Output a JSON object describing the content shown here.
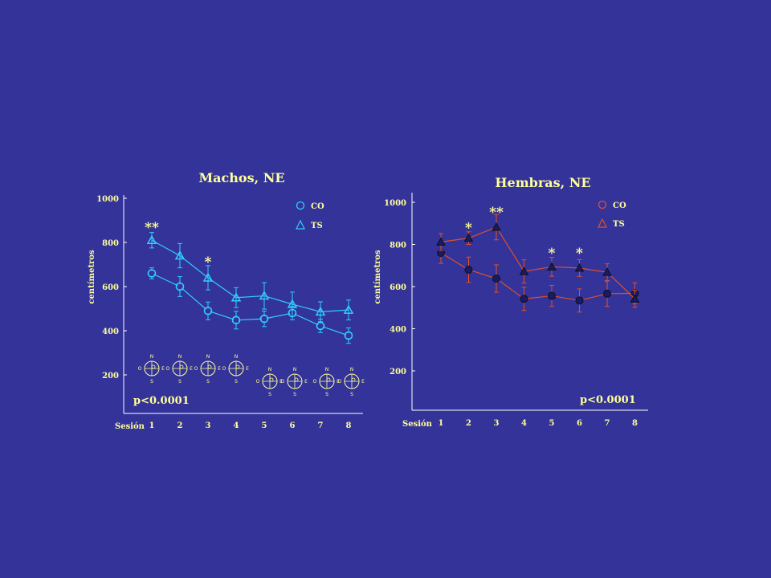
{
  "colors": {
    "background": "#333399",
    "text": "#ffff99",
    "axis": "#ffffff",
    "machos_series": "#33ccff",
    "hembras_series": "#e0502a",
    "hembras_marker_fill": "#1a1a66"
  },
  "x_axis_label": "Sesión",
  "y_axis_label": "centímetros",
  "compass": {
    "north": "N",
    "south": "S",
    "east": "E",
    "west": "O"
  },
  "chart_data": [
    {
      "type": "line",
      "title": "Machos, NE",
      "xlabel": "Sesión",
      "ylabel": "centímetros",
      "x": [
        1,
        2,
        3,
        4,
        5,
        6,
        7,
        8
      ],
      "ylim": [
        100,
        1000
      ],
      "yticks": [
        200,
        400,
        600,
        800,
        1000
      ],
      "series": [
        {
          "name": "CO",
          "marker": "circle",
          "values": [
            660,
            600,
            490,
            448,
            454,
            480,
            422,
            378
          ],
          "errors": [
            25,
            45,
            40,
            40,
            35,
            30,
            30,
            35
          ]
        },
        {
          "name": "TS",
          "marker": "triangle",
          "values": [
            810,
            740,
            640,
            550,
            558,
            520,
            486,
            494
          ],
          "errors": [
            35,
            55,
            55,
            45,
            60,
            55,
            45,
            45
          ]
        }
      ],
      "annotations": [
        {
          "text": "**",
          "x": 1,
          "y": 870
        },
        {
          "text": "*",
          "x": 3,
          "y": 712
        }
      ],
      "p_value": "p<0.0001",
      "legend_position": "top-right"
    },
    {
      "type": "line",
      "title": "Hembras, NE",
      "xlabel": "Sesión",
      "ylabel": "centímetros",
      "x": [
        1,
        2,
        3,
        4,
        5,
        6,
        7,
        8
      ],
      "ylim": [
        100,
        1000
      ],
      "yticks": [
        200,
        400,
        600,
        800,
        1000
      ],
      "series": [
        {
          "name": "CO",
          "marker": "circle",
          "values": [
            760,
            680,
            638,
            542,
            556,
            534,
            566,
            568
          ],
          "errors": [
            50,
            60,
            65,
            55,
            50,
            55,
            60,
            50
          ]
        },
        {
          "name": "TS",
          "marker": "triangle",
          "values": [
            812,
            830,
            882,
            672,
            694,
            688,
            668,
            542
          ],
          "errors": [
            40,
            30,
            60,
            55,
            45,
            40,
            40,
            40
          ]
        }
      ],
      "annotations": [
        {
          "text": "**",
          "x": 3,
          "y": 955
        },
        {
          "text": "*",
          "x": 2,
          "y": 880
        },
        {
          "text": "*",
          "x": 5,
          "y": 760
        },
        {
          "text": "*",
          "x": 6,
          "y": 760
        }
      ],
      "p_value": "p<0.0001",
      "legend_position": "top-right"
    }
  ]
}
